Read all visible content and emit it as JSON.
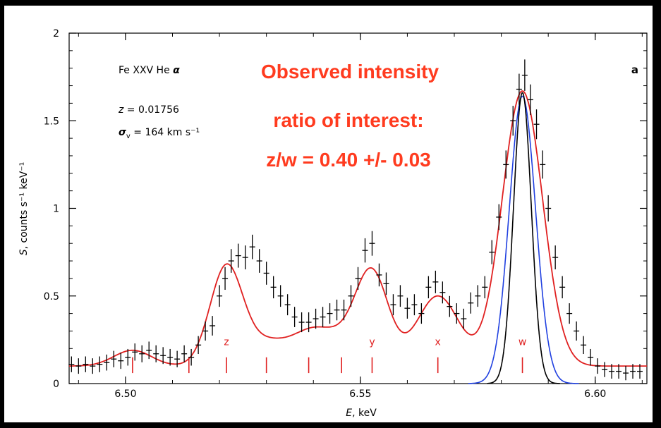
{
  "chart_data": {
    "type": "scatter",
    "panel_label": "a",
    "xlabel_italic": "E",
    "xlabel_rest": ", keV",
    "ylabel_italic": "S",
    "ylabel_rest": ", counts s⁻¹ keV⁻¹",
    "xlim": [
      6.488,
      6.611
    ],
    "ylim": [
      0,
      2
    ],
    "x_ticks": [
      {
        "value": 6.5,
        "label": "6.50"
      },
      {
        "value": 6.55,
        "label": "6.55"
      },
      {
        "value": 6.6,
        "label": "6.60"
      }
    ],
    "y_ticks": [
      {
        "value": 0,
        "label": "0"
      },
      {
        "value": 0.5,
        "label": "0.5"
      },
      {
        "value": 1,
        "label": "1"
      },
      {
        "value": 1.5,
        "label": "1.5"
      },
      {
        "value": 2,
        "label": "2"
      }
    ],
    "info": {
      "line1": "Fe XXV He",
      "line1_symbol": "α",
      "line2_var": "z",
      "line2_rest": " = 0.01756",
      "line3_var": "σ",
      "line3_sub": "v",
      "line3_rest": " = 164  km s⁻¹"
    },
    "annotation": [
      "Observed intensity",
      "ratio of interest:",
      "z/w = 0.40 +/- 0.03"
    ],
    "line_markers": [
      {
        "x": 6.5015,
        "label": ""
      },
      {
        "x": 6.5135,
        "label": ""
      },
      {
        "x": 6.5215,
        "label": "z"
      },
      {
        "x": 6.53,
        "label": ""
      },
      {
        "x": 6.539,
        "label": ""
      },
      {
        "x": 6.546,
        "label": ""
      },
      {
        "x": 6.5525,
        "label": "y"
      },
      {
        "x": 6.5665,
        "label": "x"
      },
      {
        "x": 6.5845,
        "label": "w"
      }
    ],
    "data_points": [
      [
        6.4885,
        0.11
      ],
      [
        6.49,
        0.1
      ],
      [
        6.4915,
        0.11
      ],
      [
        6.493,
        0.1
      ],
      [
        6.4945,
        0.11
      ],
      [
        6.496,
        0.12
      ],
      [
        6.4975,
        0.14
      ],
      [
        6.499,
        0.13
      ],
      [
        6.5005,
        0.15
      ],
      [
        6.502,
        0.18
      ],
      [
        6.5035,
        0.17
      ],
      [
        6.505,
        0.19
      ],
      [
        6.5065,
        0.17
      ],
      [
        6.508,
        0.16
      ],
      [
        6.5095,
        0.15
      ],
      [
        6.511,
        0.14
      ],
      [
        6.5125,
        0.17
      ],
      [
        6.514,
        0.15
      ],
      [
        6.5155,
        0.22
      ],
      [
        6.517,
        0.3
      ],
      [
        6.5185,
        0.33
      ],
      [
        6.52,
        0.5
      ],
      [
        6.5212,
        0.6
      ],
      [
        6.5225,
        0.7
      ],
      [
        6.524,
        0.73
      ],
      [
        6.5255,
        0.72
      ],
      [
        6.527,
        0.78
      ],
      [
        6.5285,
        0.7
      ],
      [
        6.53,
        0.63
      ],
      [
        6.5315,
        0.55
      ],
      [
        6.533,
        0.5
      ],
      [
        6.5345,
        0.45
      ],
      [
        6.536,
        0.38
      ],
      [
        6.5375,
        0.35
      ],
      [
        6.539,
        0.35
      ],
      [
        6.5405,
        0.37
      ],
      [
        6.542,
        0.38
      ],
      [
        6.5435,
        0.4
      ],
      [
        6.545,
        0.42
      ],
      [
        6.5465,
        0.42
      ],
      [
        6.548,
        0.5
      ],
      [
        6.5495,
        0.6
      ],
      [
        6.551,
        0.76
      ],
      [
        6.5525,
        0.8
      ],
      [
        6.554,
        0.62
      ],
      [
        6.5555,
        0.57
      ],
      [
        6.557,
        0.45
      ],
      [
        6.5585,
        0.5
      ],
      [
        6.56,
        0.43
      ],
      [
        6.5615,
        0.45
      ],
      [
        6.563,
        0.4
      ],
      [
        6.5645,
        0.55
      ],
      [
        6.566,
        0.58
      ],
      [
        6.5675,
        0.52
      ],
      [
        6.569,
        0.44
      ],
      [
        6.5705,
        0.4
      ],
      [
        6.572,
        0.37
      ],
      [
        6.5735,
        0.46
      ],
      [
        6.575,
        0.5
      ],
      [
        6.5765,
        0.55
      ],
      [
        6.578,
        0.75
      ],
      [
        6.5795,
        0.95
      ],
      [
        6.581,
        1.25
      ],
      [
        6.5825,
        1.5
      ],
      [
        6.5838,
        1.68
      ],
      [
        6.585,
        1.76
      ],
      [
        6.5862,
        1.62
      ],
      [
        6.5875,
        1.48
      ],
      [
        6.5888,
        1.25
      ],
      [
        6.59,
        1.0
      ],
      [
        6.5915,
        0.72
      ],
      [
        6.593,
        0.55
      ],
      [
        6.5945,
        0.4
      ],
      [
        6.596,
        0.3
      ],
      [
        6.5975,
        0.22
      ],
      [
        6.599,
        0.15
      ],
      [
        6.6005,
        0.1
      ],
      [
        6.602,
        0.08
      ],
      [
        6.6035,
        0.07
      ],
      [
        6.605,
        0.07
      ],
      [
        6.6065,
        0.06
      ],
      [
        6.608,
        0.07
      ],
      [
        6.6095,
        0.07
      ]
    ],
    "series": [
      {
        "name": "",
        "color": "#e02020"
      },
      {
        "name": "",
        "color": "#2040e0"
      },
      {
        "name": "",
        "color": "#000000"
      }
    ]
  }
}
